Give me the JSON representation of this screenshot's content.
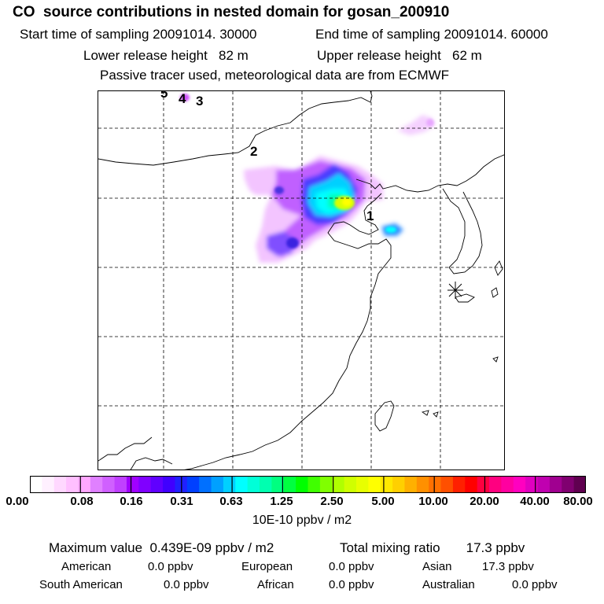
{
  "title": "CO  source contributions in nested domain for gosan_200910",
  "sampling": {
    "start": "Start time of sampling 20091014. 30000",
    "end": "End time of sampling 20091014. 60000"
  },
  "release": {
    "lower": "Lower release height   82 m",
    "upper": "Upper release height   62 m"
  },
  "note": "Passive tracer used, meteorological data are from ECMWF",
  "map": {
    "trajectory_labels": [
      "1",
      "2",
      "3",
      "4",
      "5"
    ],
    "receptor_marker": "asterisk-star-icon"
  },
  "colorbar": {
    "tick_labels": [
      "0.00",
      "0.08",
      "0.16",
      "0.31",
      "0.63",
      "1.25",
      "2.50",
      "5.00",
      "10.00",
      "20.00",
      "40.00",
      "80.00"
    ],
    "colors": [
      "#ffffff",
      "#fff0ff",
      "#ffd8ff",
      "#ffc0ff",
      "#ffa8ff",
      "#e080ff",
      "#d060ff",
      "#c040ff",
      "#a000ff",
      "#8000ff",
      "#6000ff",
      "#4000ff",
      "#2020ff",
      "#0040ff",
      "#0070ff",
      "#00a0ff",
      "#00d0ff",
      "#00ffff",
      "#00ffd8",
      "#00ffb0",
      "#00ff80",
      "#00ff40",
      "#00ff00",
      "#40ff00",
      "#80ff00",
      "#b0ff00",
      "#d0ff00",
      "#e8ff00",
      "#ffff00",
      "#ffe800",
      "#ffd000",
      "#ffb000",
      "#ff9000",
      "#ff7000",
      "#ff5000",
      "#ff2000",
      "#ff0000",
      "#ff0040",
      "#ff0080",
      "#ff00a0",
      "#ff00c0",
      "#e000c0",
      "#c000b0",
      "#a00090",
      "#800070",
      "#600050"
    ],
    "units": "10E-10 ppbv / m2"
  },
  "summary": {
    "max": "Maximum value  0.439E-09 ppbv / m2",
    "total": "Total mixing ratio       17.3 ppbv"
  },
  "regions": [
    {
      "name": "American",
      "value": "0.0 ppbv"
    },
    {
      "name": "European",
      "value": "0.0 ppbv"
    },
    {
      "name": "Asian",
      "value": "17.3 ppbv"
    },
    {
      "name": "South American",
      "value": "0.0 ppbv"
    },
    {
      "name": "African",
      "value": "0.0 ppbv"
    },
    {
      "name": "Australian",
      "value": "0.0 ppbv"
    }
  ]
}
